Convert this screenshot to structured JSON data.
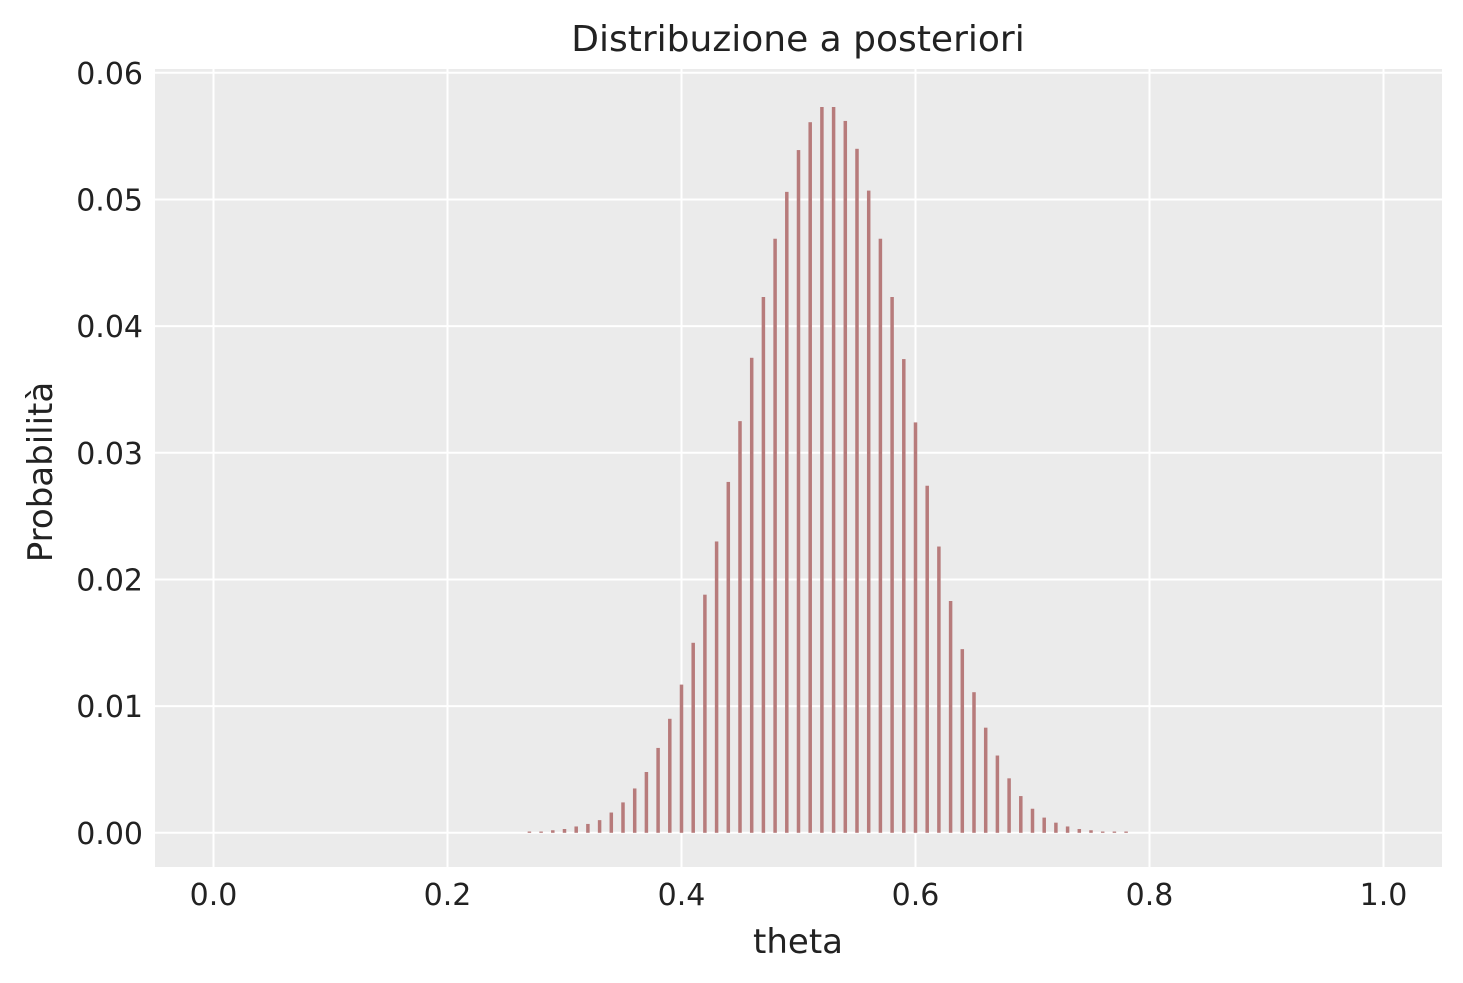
{
  "chart_data": {
    "type": "bar",
    "title": "Distribuzione a posteriori",
    "xlabel": "theta",
    "ylabel": "Probabilità",
    "xlim": [
      -0.05,
      1.05
    ],
    "ylim": [
      -0.0027,
      0.0603
    ],
    "grid": true,
    "legend": "none",
    "colors": {
      "background": "#ebebeb",
      "bar": "#b77b7b",
      "grid": "#ffffff",
      "text": "#222222"
    },
    "x_ticks": [
      "0.0",
      "0.2",
      "0.4",
      "0.6",
      "0.8",
      "1.0"
    ],
    "y_ticks": [
      "0.00",
      "0.01",
      "0.02",
      "0.03",
      "0.04",
      "0.05",
      "0.06"
    ],
    "x": [
      0.27,
      0.28,
      0.29,
      0.3,
      0.31,
      0.32,
      0.33,
      0.34,
      0.35,
      0.36,
      0.37,
      0.38,
      0.39,
      0.4,
      0.41,
      0.42,
      0.43,
      0.44,
      0.45,
      0.46,
      0.47,
      0.48,
      0.49,
      0.5,
      0.51,
      0.52,
      0.53,
      0.54,
      0.55,
      0.56,
      0.57,
      0.58,
      0.59,
      0.6,
      0.61,
      0.62,
      0.63,
      0.64,
      0.65,
      0.66,
      0.67,
      0.68,
      0.69,
      0.7,
      0.71,
      0.72,
      0.73,
      0.74,
      0.75,
      0.76,
      0.77,
      0.78
    ],
    "values": [
      0.0001,
      0.0001,
      0.0002,
      0.0003,
      0.0005,
      0.0007,
      0.001,
      0.0016,
      0.0024,
      0.0035,
      0.0048,
      0.0067,
      0.009,
      0.0117,
      0.015,
      0.0188,
      0.023,
      0.0277,
      0.0325,
      0.0375,
      0.0423,
      0.0469,
      0.0506,
      0.0539,
      0.0561,
      0.0573,
      0.0573,
      0.0562,
      0.054,
      0.0507,
      0.0469,
      0.0423,
      0.0374,
      0.0324,
      0.0274,
      0.0226,
      0.0183,
      0.0145,
      0.0111,
      0.0083,
      0.0061,
      0.0043,
      0.0029,
      0.0019,
      0.0012,
      0.0008,
      0.0005,
      0.0003,
      0.0002,
      0.0001,
      0.0001,
      0.0001
    ]
  }
}
